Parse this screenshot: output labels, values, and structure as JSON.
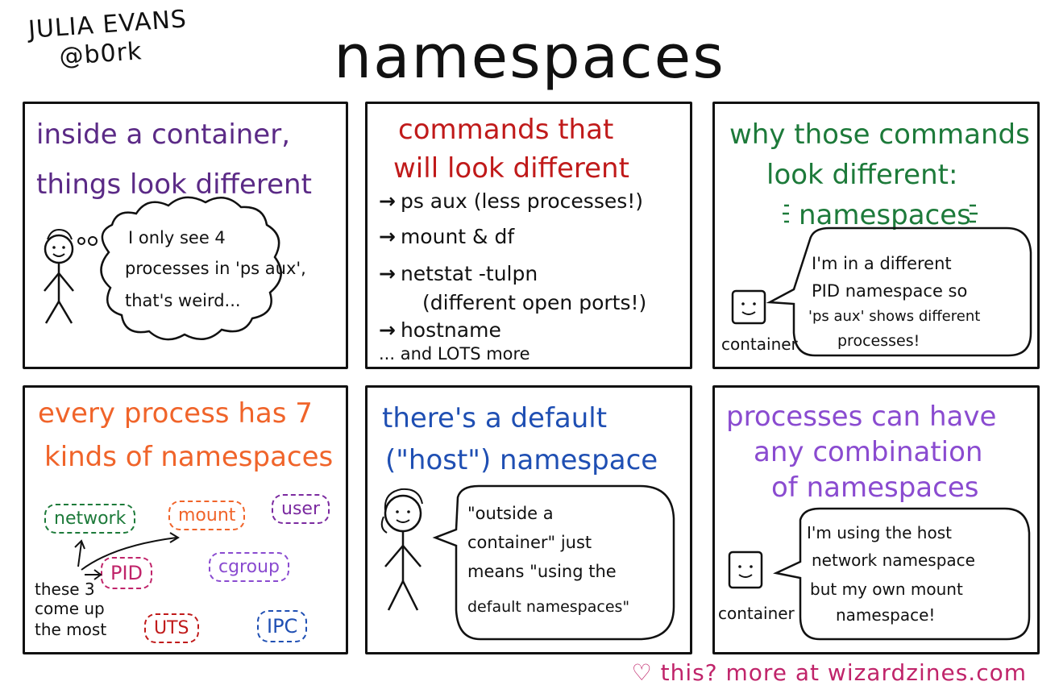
{
  "header": {
    "author_name": "JULIA EVANS",
    "author_handle": "@b0rk",
    "title": "namespaces"
  },
  "colors": {
    "purple": "#5b2a86",
    "red": "#c01a1a",
    "green": "#1d7a3a",
    "orange": "#f0642a",
    "blue": "#1f4fb3",
    "violet": "#8a4bd0",
    "pink": "#c0246a"
  },
  "panels": {
    "p1": {
      "title_line1": "inside a container,",
      "title_line2": "things look different",
      "thought": [
        "I only see 4",
        "processes in 'ps aux',",
        "that's weird..."
      ]
    },
    "p2": {
      "title_line1": "commands that",
      "title_line2": "will look different",
      "items": [
        "ps aux (less processes!)",
        "mount & df",
        "netstat -tulpn",
        "(different open ports!)",
        "hostname",
        "... and LOTS more"
      ]
    },
    "p3": {
      "title_line1": "why those commands",
      "title_line2": "look different:",
      "title_line3": "namespaces",
      "speech": [
        "I'm in a different",
        "PID namespace so",
        "'ps aux' shows different",
        "processes!"
      ],
      "container_label": "container"
    },
    "p4": {
      "title_line1": "every process has 7",
      "title_line2": "kinds of namespaces",
      "namespaces": [
        "network",
        "mount",
        "user",
        "PID",
        "cgroup",
        "UTS",
        "IPC"
      ],
      "note": [
        "these 3",
        "come up",
        "the most"
      ]
    },
    "p5": {
      "title_line1": "there's a default",
      "title_line2": "(\"host\") namespace",
      "speech": [
        "\"outside a",
        "container\" just",
        "means \"using the",
        "default namespaces\""
      ]
    },
    "p6": {
      "title_line1": "processes can have",
      "title_line2": "any combination",
      "title_line3": "of namespaces",
      "speech": [
        "I'm using the host",
        "network namespace",
        "but my own mount",
        "namespace!"
      ],
      "container_label": "container"
    }
  },
  "footer": {
    "heart": "♡",
    "text": "this? more at wizardzines.com"
  }
}
